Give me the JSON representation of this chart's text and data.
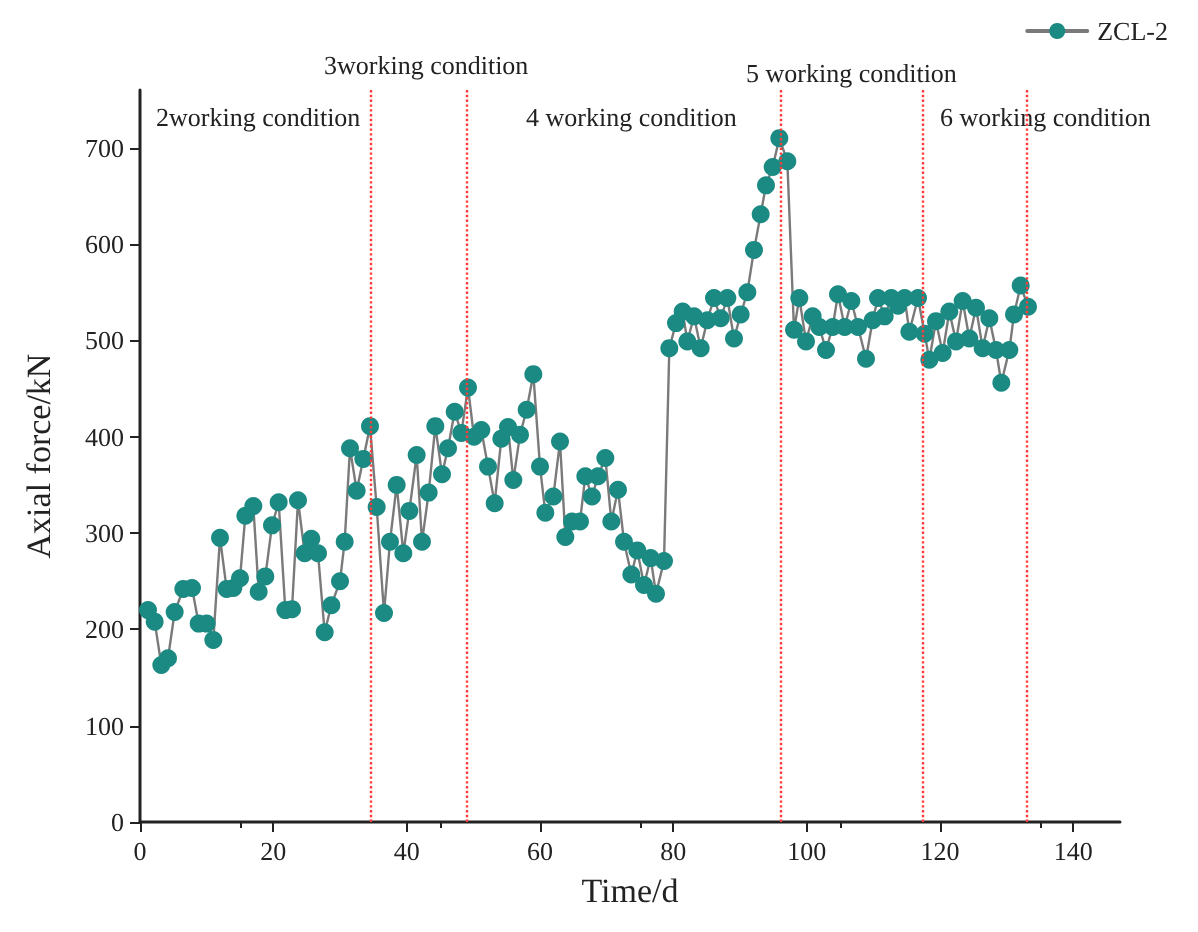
{
  "chart_data": {
    "type": "line",
    "xlabel": "Time/d",
    "ylabel": "Axial force/kN",
    "xlim": [
      0,
      147
    ],
    "xticks": [
      0,
      20,
      40,
      60,
      80,
      100,
      120,
      140
    ],
    "ylim": [
      0,
      760
    ],
    "yticks": [
      0,
      100,
      200,
      300,
      400,
      500,
      600,
      700
    ],
    "grid": false,
    "legend": "top right",
    "marker": "circle",
    "line_style": "solid",
    "annotations": [
      "2working condition",
      "3working condition",
      "4 working condition",
      "5 working condition",
      "6 working condition"
    ],
    "ref_lines": [
      {
        "axis": "x",
        "value": 34.5,
        "color": "#ff3b3b",
        "line_style": "dotted"
      },
      {
        "axis": "x",
        "value": 49,
        "color": "#ff3b3b",
        "line_style": "dotted"
      },
      {
        "axis": "x",
        "value": 96,
        "color": "#ff3b3b",
        "line_style": "dotted"
      },
      {
        "axis": "x",
        "value": 117.5,
        "color": "#ff3b3b",
        "line_style": "dotted"
      },
      {
        "axis": "x",
        "value": 133,
        "color": "#ff3b3b",
        "line_style": "dotted"
      }
    ],
    "series": [
      {
        "name": "ZCL-2",
        "color": "#1b8a83",
        "x": [
          1.2,
          2.2,
          3.2,
          4.2,
          5.2,
          6.5,
          7.8,
          8.8,
          10,
          11,
          12,
          13,
          14,
          15,
          15.8,
          17,
          17.8,
          18.8,
          19.8,
          20.8,
          21.8,
          22.8,
          23.7,
          24.7,
          25.7,
          26.7,
          27.7,
          28.7,
          30,
          30.7,
          31.5,
          32.5,
          33.5,
          34.5,
          35.5,
          36.6,
          37.5,
          38.5,
          39.5,
          40.4,
          41.5,
          42.3,
          43.3,
          44.3,
          45.3,
          46.2,
          47.2,
          48.2,
          49.2,
          50.1,
          51.2,
          52.2,
          53.2,
          54.2,
          55.2,
          56,
          57,
          58,
          59,
          60,
          60.8,
          62,
          63,
          63.8,
          64.8,
          66,
          66.8,
          67.8,
          68.7,
          69.8,
          70.7,
          71.7,
          72.6,
          73.7,
          74.6,
          75.6,
          76.6,
          77.4,
          78.6,
          79.4,
          80.4,
          81.4,
          82.1,
          83.1,
          84.1,
          85.1,
          86.1,
          87.1,
          88.1,
          89.1,
          90.1,
          91.1,
          92.1,
          93.1,
          93.9,
          94.9,
          95.9,
          97.1,
          98.1,
          98.9,
          99.9,
          100.9,
          101.9,
          102.9,
          103.9,
          104.7,
          105.7,
          106.7,
          107.7,
          108.9,
          109.9,
          110.7,
          111.7,
          112.7,
          113.7,
          114.7,
          115.4,
          116.7,
          117.7,
          118.4,
          119.4,
          120.4,
          121.4,
          122.4,
          123.4,
          124.4,
          125.4,
          126.4,
          127.4,
          128.4,
          129.2,
          130.4,
          131.1,
          132.1,
          133.2
        ],
        "values": [
          220,
          208,
          163,
          170,
          218,
          242,
          243,
          206,
          206,
          189,
          295,
          242,
          243,
          253,
          318,
          328,
          239,
          255,
          308,
          332,
          220,
          221,
          334,
          279,
          294,
          279,
          197,
          225,
          250,
          291,
          388,
          344,
          377,
          411,
          327,
          217,
          291,
          350,
          279,
          323,
          381,
          291,
          342,
          411,
          361,
          388,
          426,
          404,
          451,
          400,
          407,
          369,
          331,
          398,
          410,
          355,
          402,
          428,
          465,
          369,
          321,
          338,
          395,
          296,
          312,
          312,
          359,
          338,
          359,
          378,
          312,
          345,
          291,
          257,
          282,
          246,
          274,
          237,
          271,
          492,
          518,
          530,
          499,
          525,
          492,
          521,
          544,
          523,
          544,
          502,
          527,
          550,
          594,
          631,
          661,
          680,
          710,
          686,
          511,
          544,
          499,
          525,
          514,
          490,
          514,
          548,
          514,
          541,
          514,
          481,
          521,
          544,
          525,
          544,
          536,
          544,
          509,
          544,
          507,
          480,
          520,
          487,
          530,
          499,
          541,
          502,
          534,
          492,
          523,
          490,
          456,
          490,
          527,
          557,
          535
        ]
      }
    ]
  }
}
